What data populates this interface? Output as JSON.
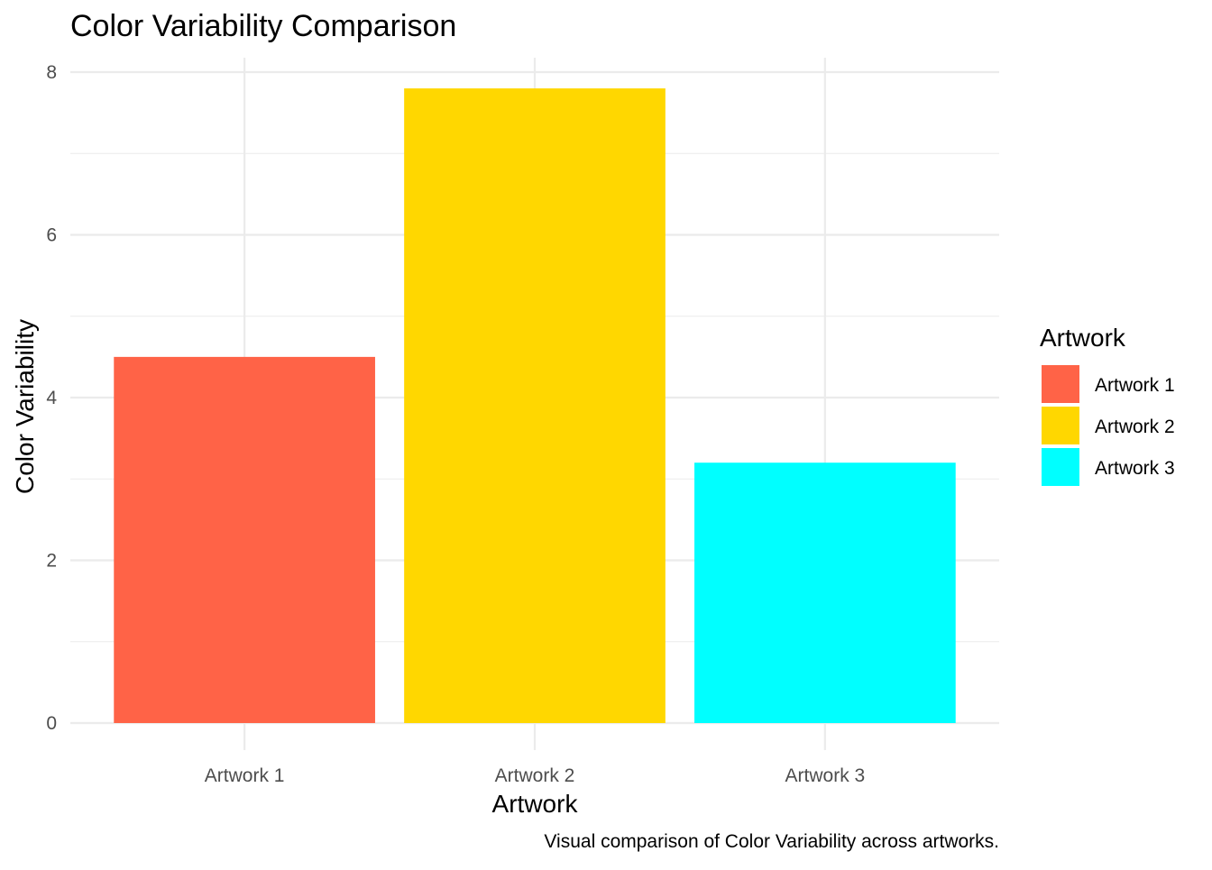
{
  "chart_data": {
    "type": "bar",
    "title": "Color Variability Comparison",
    "xlabel": "Artwork",
    "ylabel": "Color Variability",
    "caption": "Visual comparison of Color Variability across artworks.",
    "categories": [
      "Artwork 1",
      "Artwork 2",
      "Artwork 3"
    ],
    "values": [
      4.5,
      7.8,
      3.2
    ],
    "colors": [
      "#FF6347",
      "#FFD700",
      "#00FFFF"
    ],
    "ylim": [
      0,
      8.2
    ],
    "y_ticks": [
      0,
      2,
      4,
      6,
      8
    ],
    "y_tick_labels": [
      "0",
      "2",
      "4",
      "6",
      "8"
    ],
    "grid": true,
    "legend": {
      "title": "Artwork",
      "position": "right",
      "entries": [
        "Artwork 1",
        "Artwork 2",
        "Artwork 3"
      ]
    }
  }
}
